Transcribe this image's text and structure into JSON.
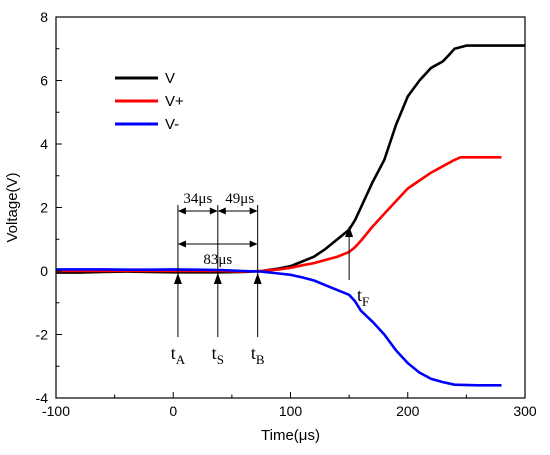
{
  "chart_data": {
    "type": "line",
    "title": "",
    "xlabel": "Time(μs)",
    "ylabel": "Voltage(V)",
    "xlim": [
      -100,
      300
    ],
    "ylim": [
      -4,
      8
    ],
    "x_ticks": [
      -100,
      0,
      100,
      200,
      300
    ],
    "y_ticks": [
      -4,
      -2,
      0,
      2,
      4,
      6,
      8
    ],
    "grid": false,
    "legend_position": "top-left",
    "series": [
      {
        "name": "V",
        "color": "#000000",
        "points": [
          [
            -100,
            -0.05
          ],
          [
            -80,
            -0.05
          ],
          [
            -60,
            -0.03
          ],
          [
            -40,
            -0.02
          ],
          [
            -20,
            -0.03
          ],
          [
            0,
            -0.04
          ],
          [
            20,
            -0.04
          ],
          [
            40,
            -0.04
          ],
          [
            60,
            -0.03
          ],
          [
            75,
            0.0
          ],
          [
            90,
            0.08
          ],
          [
            100,
            0.15
          ],
          [
            110,
            0.3
          ],
          [
            120,
            0.45
          ],
          [
            130,
            0.7
          ],
          [
            140,
            1.0
          ],
          [
            150,
            1.3
          ],
          [
            155,
            1.6
          ],
          [
            160,
            2.0
          ],
          [
            170,
            2.8
          ],
          [
            180,
            3.5
          ],
          [
            190,
            4.6
          ],
          [
            200,
            5.5
          ],
          [
            210,
            6.0
          ],
          [
            220,
            6.4
          ],
          [
            230,
            6.6
          ],
          [
            235,
            6.8
          ],
          [
            240,
            7.0
          ],
          [
            250,
            7.1
          ],
          [
            260,
            7.1
          ],
          [
            280,
            7.1
          ],
          [
            300,
            7.1
          ]
        ]
      },
      {
        "name": "V+",
        "color": "#ff0000",
        "points": [
          [
            -100,
            0.0
          ],
          [
            -60,
            0.0
          ],
          [
            -20,
            0.0
          ],
          [
            0,
            0.0
          ],
          [
            20,
            0.0
          ],
          [
            40,
            0.0
          ],
          [
            60,
            -0.02
          ],
          [
            75,
            0.0
          ],
          [
            90,
            0.05
          ],
          [
            100,
            0.1
          ],
          [
            110,
            0.18
          ],
          [
            120,
            0.25
          ],
          [
            130,
            0.35
          ],
          [
            140,
            0.45
          ],
          [
            150,
            0.6
          ],
          [
            155,
            0.75
          ],
          [
            160,
            0.95
          ],
          [
            170,
            1.4
          ],
          [
            180,
            1.8
          ],
          [
            190,
            2.2
          ],
          [
            200,
            2.6
          ],
          [
            210,
            2.85
          ],
          [
            220,
            3.1
          ],
          [
            230,
            3.3
          ],
          [
            240,
            3.5
          ],
          [
            245,
            3.58
          ],
          [
            260,
            3.58
          ],
          [
            280,
            3.58
          ]
        ]
      },
      {
        "name": "V-",
        "color": "#0000ff",
        "points": [
          [
            -100,
            0.05
          ],
          [
            -60,
            0.05
          ],
          [
            -40,
            0.04
          ],
          [
            -20,
            0.04
          ],
          [
            0,
            0.05
          ],
          [
            20,
            0.04
          ],
          [
            40,
            0.03
          ],
          [
            60,
            0.0
          ],
          [
            75,
            -0.02
          ],
          [
            90,
            -0.08
          ],
          [
            100,
            -0.12
          ],
          [
            110,
            -0.2
          ],
          [
            120,
            -0.3
          ],
          [
            130,
            -0.45
          ],
          [
            140,
            -0.6
          ],
          [
            150,
            -0.75
          ],
          [
            155,
            -0.95
          ],
          [
            160,
            -1.25
          ],
          [
            170,
            -1.6
          ],
          [
            180,
            -2.0
          ],
          [
            190,
            -2.5
          ],
          [
            200,
            -2.9
          ],
          [
            210,
            -3.2
          ],
          [
            220,
            -3.4
          ],
          [
            230,
            -3.5
          ],
          [
            240,
            -3.58
          ],
          [
            260,
            -3.6
          ],
          [
            280,
            -3.6
          ]
        ]
      }
    ],
    "annotations": {
      "interval_ab": "34μs",
      "interval_sb": "49μs",
      "interval_total": "83μs",
      "markers": [
        {
          "main": "t",
          "sub": "A",
          "x": 4
        },
        {
          "main": "t",
          "sub": "S",
          "x": 38
        },
        {
          "main": "t",
          "sub": "B",
          "x": 72
        },
        {
          "main": "t",
          "sub": "F",
          "x": 150
        }
      ]
    }
  }
}
